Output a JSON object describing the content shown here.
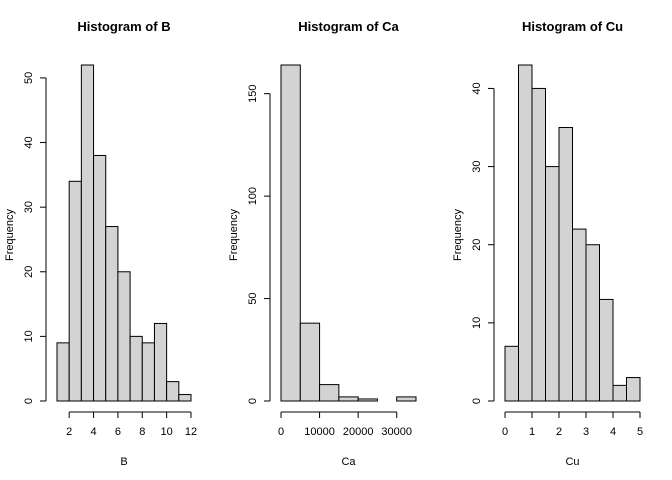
{
  "chart_data": [
    {
      "type": "bar",
      "title": "Histogram of B",
      "xlabel": "B",
      "ylabel": "Frequency",
      "bin_edges": [
        1,
        2,
        3,
        4,
        5,
        6,
        7,
        8,
        9,
        10,
        11,
        12
      ],
      "values": [
        9,
        34,
        52,
        38,
        27,
        20,
        10,
        9,
        12,
        3,
        1
      ],
      "xlim": [
        1,
        12
      ],
      "ylim": [
        0,
        52
      ],
      "xticks": [
        2,
        4,
        6,
        8,
        10,
        12
      ],
      "xtick_labels": [
        "2",
        "4",
        "6",
        "8",
        "10",
        "12"
      ],
      "yticks": [
        0,
        10,
        20,
        30,
        40,
        50
      ],
      "ytick_labels": [
        "0",
        "10",
        "20",
        "30",
        "40",
        "50"
      ],
      "bar_color": "#d3d3d3",
      "grid": false
    },
    {
      "type": "bar",
      "title": "Histogram of Ca",
      "xlabel": "Ca",
      "ylabel": "Frequency",
      "bin_edges": [
        0,
        5000,
        10000,
        15000,
        20000,
        25000,
        30000,
        35000
      ],
      "values": [
        164,
        38,
        8,
        2,
        1,
        0,
        2
      ],
      "xlim": [
        0,
        35000
      ],
      "ylim": [
        0,
        164
      ],
      "xticks": [
        0,
        10000,
        20000,
        30000
      ],
      "xtick_labels": [
        "0",
        "10000",
        "20000",
        "30000"
      ],
      "yticks": [
        0,
        50,
        100,
        150
      ],
      "ytick_labels": [
        "0",
        "50",
        "100",
        "150"
      ],
      "bar_color": "#d3d3d3",
      "grid": false
    },
    {
      "type": "bar",
      "title": "Histogram of Cu",
      "xlabel": "Cu",
      "ylabel": "Frequency",
      "bin_edges": [
        0,
        0.5,
        1,
        1.5,
        2,
        2.5,
        3,
        3.5,
        4,
        4.5,
        5
      ],
      "values": [
        7,
        43,
        40,
        30,
        35,
        22,
        20,
        13,
        2,
        3
      ],
      "xlim": [
        0,
        5
      ],
      "ylim": [
        0,
        43
      ],
      "xticks": [
        0,
        1,
        2,
        3,
        4,
        5
      ],
      "xtick_labels": [
        "0",
        "1",
        "2",
        "3",
        "4",
        "5"
      ],
      "yticks": [
        0,
        10,
        20,
        30,
        40
      ],
      "ytick_labels": [
        "0",
        "10",
        "20",
        "30",
        "40"
      ],
      "bar_color": "#d3d3d3",
      "grid": false
    }
  ]
}
